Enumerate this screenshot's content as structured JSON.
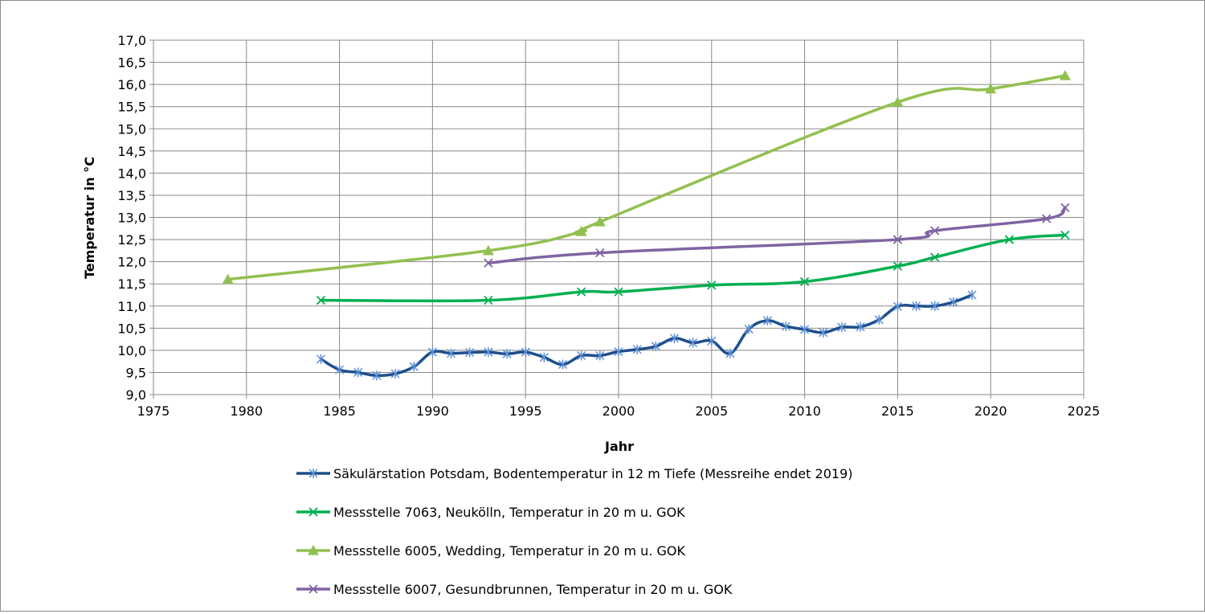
{
  "chart_data": {
    "type": "line",
    "title": "",
    "xlabel": "Jahr",
    "ylabel": "Temperatur in °C",
    "xlim": [
      1975,
      2025
    ],
    "ylim": [
      9.0,
      17.0
    ],
    "x_ticks": [
      "1975",
      "1980",
      "1985",
      "1990",
      "1995",
      "2000",
      "2005",
      "2010",
      "2015",
      "2020",
      "2025"
    ],
    "y_ticks": [
      "9,0",
      "9,5",
      "10,0",
      "10,5",
      "11,0",
      "11,5",
      "12,0",
      "12,5",
      "13,0",
      "13,5",
      "14,0",
      "14,5",
      "15,0",
      "15,5",
      "16,0",
      "16,5",
      "17,0"
    ],
    "grid": true,
    "legend_position": "bottom",
    "series": [
      {
        "name": "Säkulärstation Potsdam, Bodentemperatur in 12 m Tiefe (Messreihe endet 2019)",
        "color": "#1f4e8c",
        "marker": "asterisk",
        "x": [
          1984,
          1985,
          1986,
          1987,
          1988,
          1989,
          1990,
          1991,
          1992,
          1993,
          1994,
          1995,
          1996,
          1997,
          1998,
          1999,
          2000,
          2001,
          2002,
          2003,
          2004,
          2005,
          2006,
          2007,
          2008,
          2009,
          2010,
          2011,
          2012,
          2013,
          2014,
          2015,
          2016,
          2017,
          2018,
          2019
        ],
        "y": [
          9.8,
          9.56,
          9.5,
          9.43,
          9.47,
          9.63,
          9.96,
          9.93,
          9.95,
          9.96,
          9.92,
          9.96,
          9.84,
          9.68,
          9.88,
          9.88,
          9.97,
          10.02,
          10.09,
          10.27,
          10.17,
          10.21,
          9.93,
          10.48,
          10.67,
          10.54,
          10.47,
          10.4,
          10.52,
          10.53,
          10.69,
          10.99,
          11.0,
          11.0,
          11.09,
          11.25
        ]
      },
      {
        "name": "Messstelle 7063, Neukölln, Temperatur in 20 m u. GOK",
        "color": "#00b050",
        "marker": "x",
        "x": [
          1984,
          1993,
          1998,
          2000,
          2005,
          2010,
          2015,
          2017,
          2021,
          2024
        ],
        "y": [
          11.13,
          11.13,
          11.32,
          11.32,
          11.47,
          11.55,
          11.9,
          12.1,
          12.5,
          12.6
        ]
      },
      {
        "name": "Messstelle 6005, Wedding, Temperatur in 20 m u. GOK",
        "color": "#92c050",
        "marker": "triangle",
        "x": [
          1979,
          1993,
          1998,
          1999,
          2015,
          2020,
          2024
        ],
        "y": [
          11.6,
          12.25,
          12.68,
          12.9,
          15.6,
          15.9,
          16.2
        ]
      },
      {
        "name": "Messstelle 6007, Gesundbrunnen, Temperatur in 20 m u. GOK",
        "color": "#8064a2",
        "marker": "x",
        "x": [
          1993,
          1999,
          2015,
          2017,
          2023,
          2024
        ],
        "y": [
          11.97,
          12.2,
          12.5,
          12.7,
          12.97,
          13.22
        ]
      }
    ]
  }
}
